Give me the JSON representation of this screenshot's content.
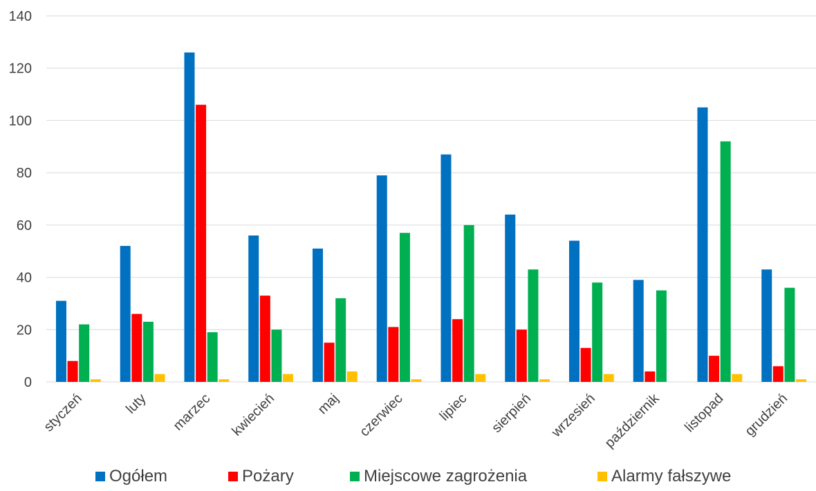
{
  "chart_data": {
    "type": "bar",
    "title": "",
    "xlabel": "",
    "ylabel": "",
    "ylim": [
      0,
      140
    ],
    "yticks": [
      0,
      20,
      40,
      60,
      80,
      100,
      120,
      140
    ],
    "grid": true,
    "legend_position": "bottom",
    "categories": [
      "styczeń",
      "luty",
      "marzec",
      "kwiecień",
      "maj",
      "czerwiec",
      "lipiec",
      "sierpień",
      "wrzesień",
      "październik",
      "listopad",
      "grudzień"
    ],
    "series": [
      {
        "name": "Ogółem",
        "color": "#0070C0",
        "values": [
          31,
          52,
          126,
          56,
          51,
          79,
          87,
          64,
          54,
          39,
          105,
          43
        ]
      },
      {
        "name": "Pożary",
        "color": "#FF0000",
        "values": [
          8,
          26,
          106,
          33,
          15,
          21,
          24,
          20,
          13,
          4,
          10,
          6
        ]
      },
      {
        "name": "Miejscowe zagrożenia",
        "color": "#00B050",
        "values": [
          22,
          23,
          19,
          20,
          32,
          57,
          60,
          43,
          38,
          35,
          92,
          36
        ]
      },
      {
        "name": "Alarmy fałszywe",
        "color": "#FFC000",
        "values": [
          1,
          3,
          1,
          3,
          4,
          1,
          3,
          1,
          3,
          0,
          3,
          1
        ]
      }
    ]
  }
}
